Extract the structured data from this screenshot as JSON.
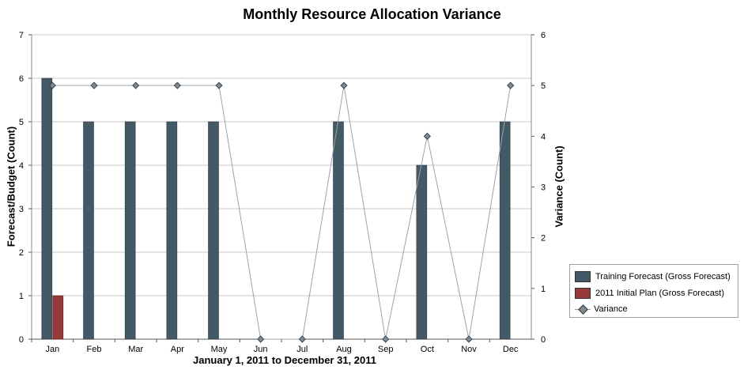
{
  "chart_data": {
    "type": "bar",
    "title": "Monthly Resource Allocation Variance",
    "xlabel": "January 1, 2011 to December 31, 2011",
    "ylabel": "Forecast/Budget (Count)",
    "y2label": "Variance (Count)",
    "categories": [
      "Jan",
      "Feb",
      "Mar",
      "Apr",
      "May",
      "Jun",
      "Jul",
      "Aug",
      "Sep",
      "Oct",
      "Nov",
      "Dec"
    ],
    "ylim": [
      0,
      7
    ],
    "y2lim": [
      0,
      6
    ],
    "yticks": [
      "0",
      "1",
      "2",
      "3",
      "4",
      "5",
      "6",
      "7"
    ],
    "y2ticks": [
      "0",
      "1",
      "2",
      "3",
      "4",
      "5",
      "6"
    ],
    "grid": true,
    "legend_position": "bottom-right",
    "series": [
      {
        "name": "Training Forecast (Gross Forecast)",
        "type": "bar",
        "axis": "left",
        "color": "#435966",
        "values": [
          6,
          5,
          5,
          5,
          5,
          0,
          0,
          5,
          0,
          4,
          0,
          5
        ]
      },
      {
        "name": "2011 Initial Plan (Gross Forecast)",
        "type": "bar",
        "axis": "left",
        "color": "#973a3a",
        "values": [
          1,
          0,
          0,
          0,
          0,
          0,
          0,
          0,
          0,
          0,
          0,
          0
        ]
      },
      {
        "name": "Variance",
        "type": "line",
        "axis": "right",
        "color": "#9aa3aa",
        "marker": "diamond",
        "values": [
          5,
          5,
          5,
          5,
          5,
          0,
          0,
          5,
          0,
          4,
          0,
          5
        ]
      }
    ]
  }
}
